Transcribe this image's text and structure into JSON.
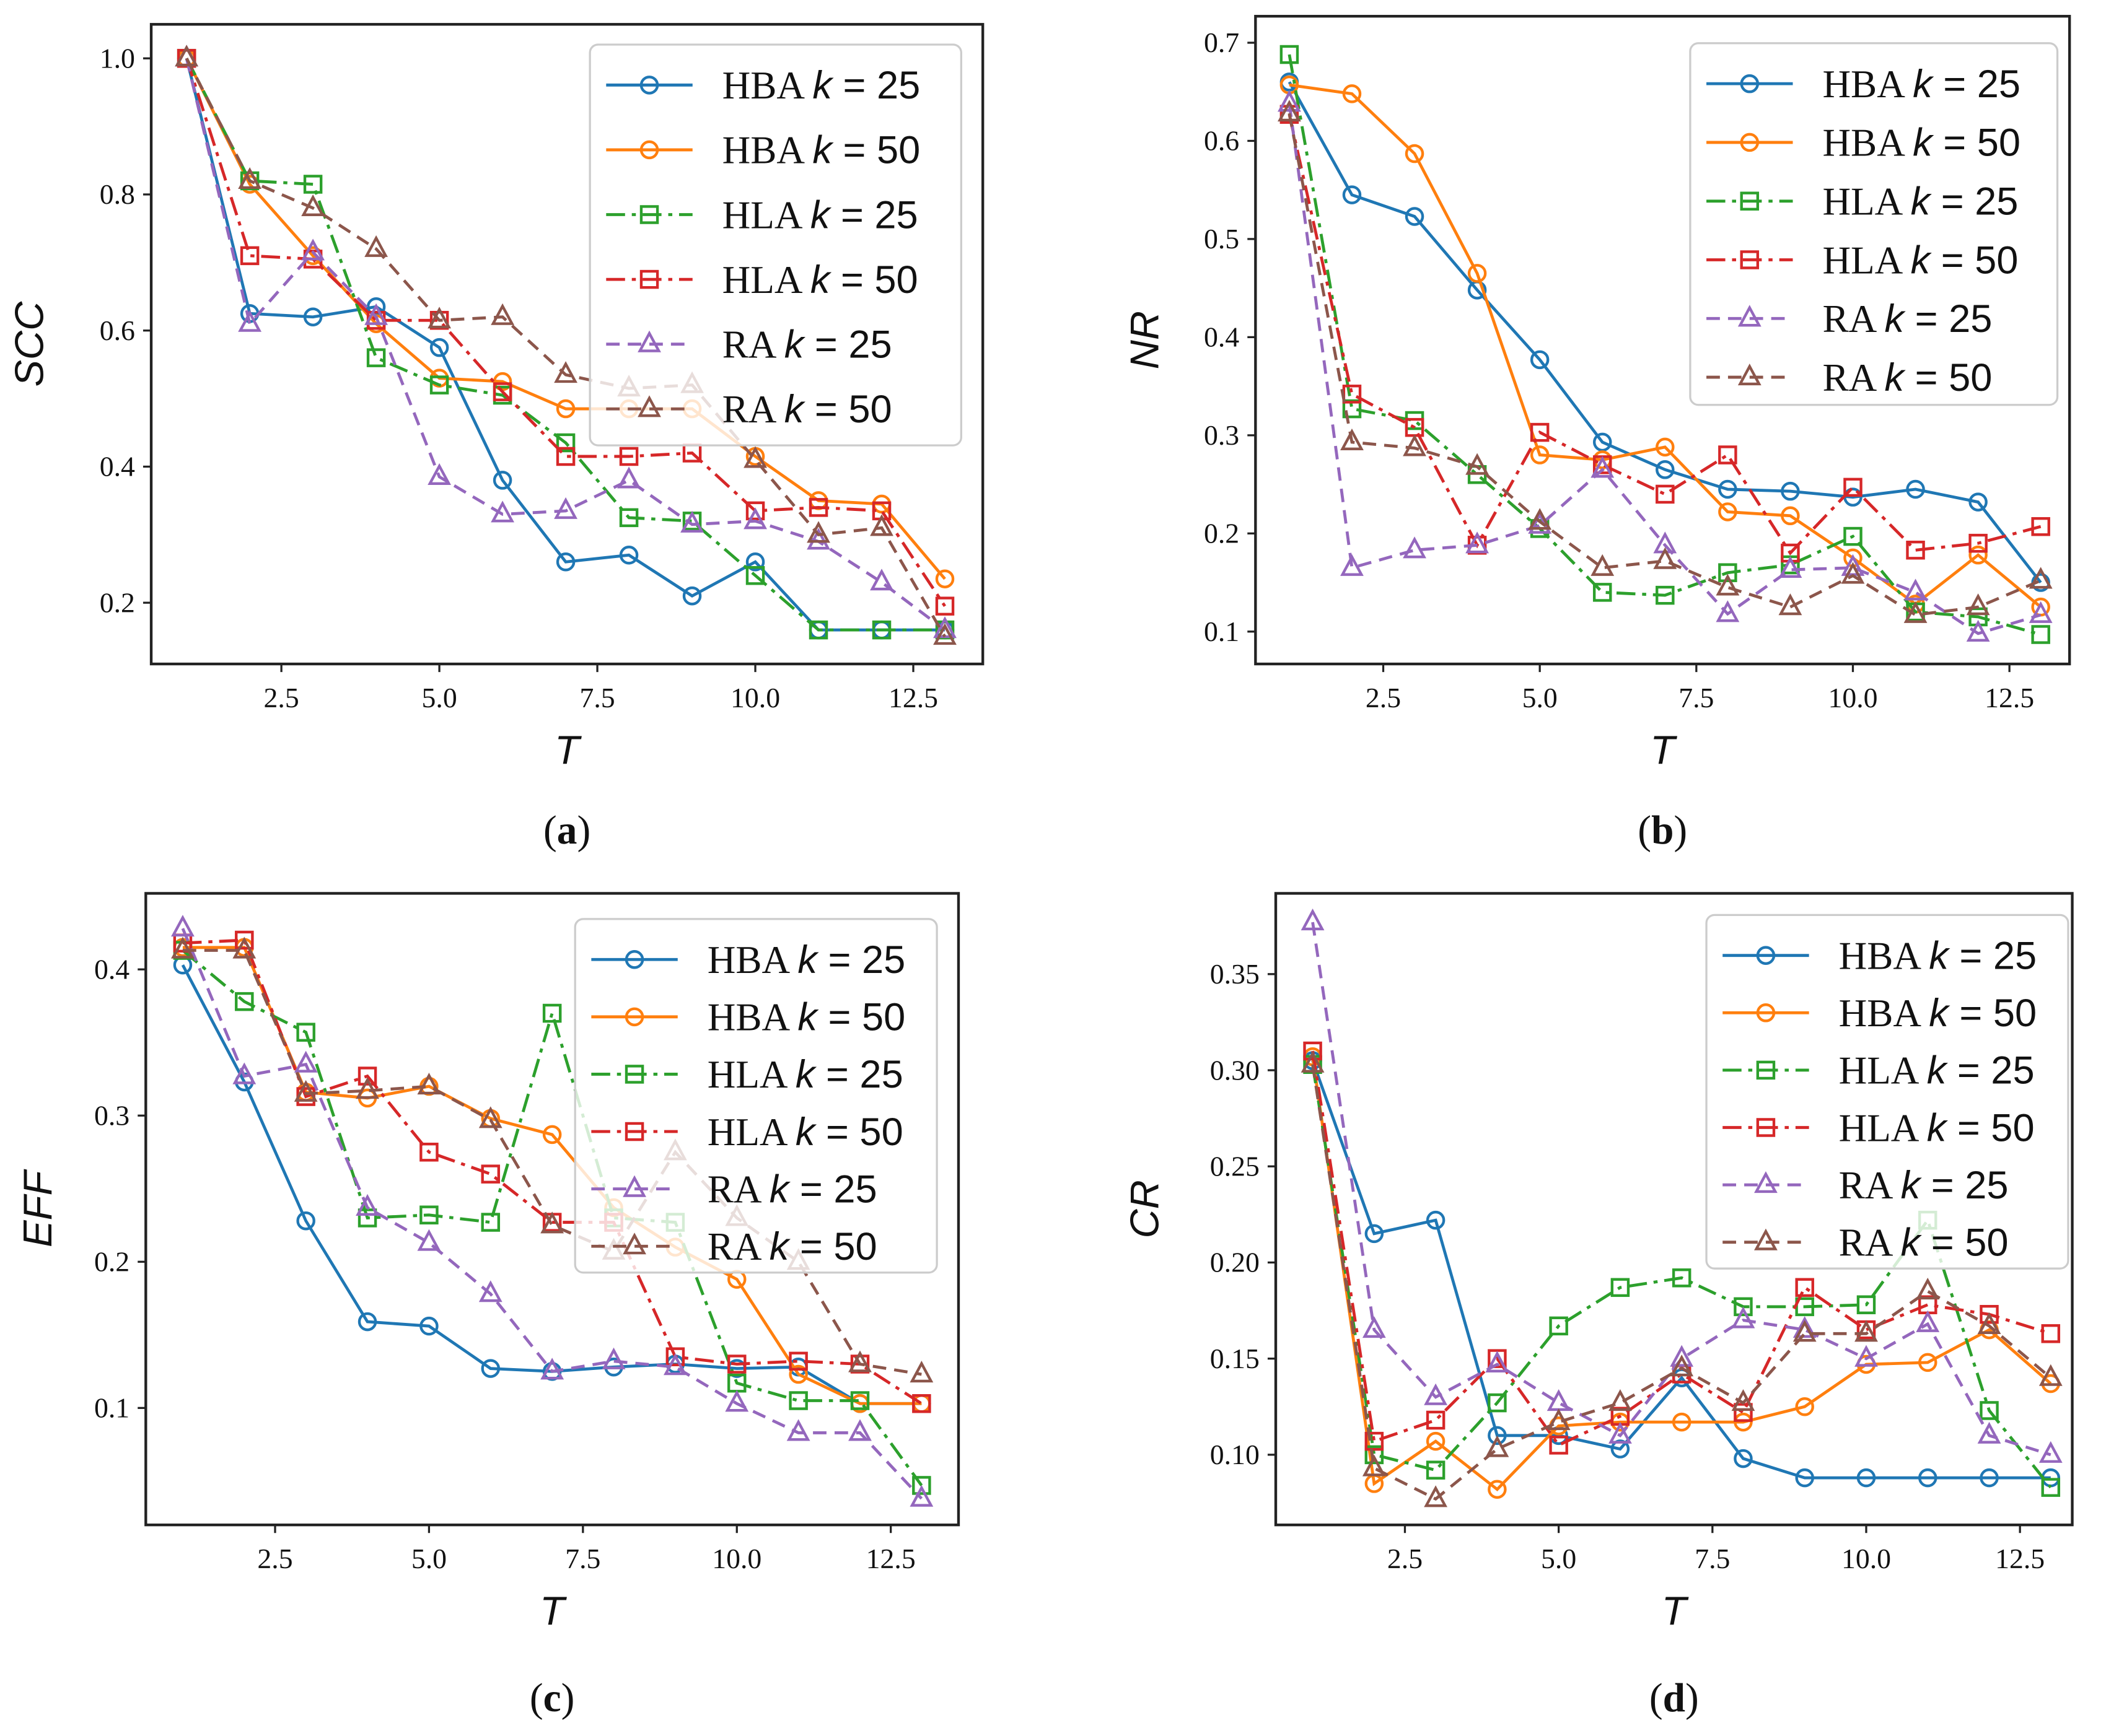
{
  "colors": {
    "HBA k = 25": "#1f77b4",
    "HBA k = 50": "#ff7f0e",
    "HLA k = 25": "#2ca02c",
    "HLA k = 50": "#d62728",
    "RA k = 25": "#9467bd",
    "RA k = 50": "#8c564b"
  },
  "chart_data": [
    {
      "type": "line",
      "caption": "a",
      "xlabel": "T",
      "ylabel": "SCC",
      "xlim": [
        0.44,
        13.6
      ],
      "ylim": [
        0.11,
        1.05
      ],
      "xticks": [
        2.5,
        5.0,
        7.5,
        10.0,
        12.5
      ],
      "yticks": [
        0.2,
        0.4,
        0.6,
        0.8,
        1.0
      ],
      "ytick_fmt": 1,
      "legend": "top-right",
      "x": [
        1,
        2,
        3,
        4,
        5,
        6,
        7,
        8,
        9,
        10,
        11,
        12,
        13
      ],
      "series": [
        {
          "name": "HBA",
          "k": "25",
          "values": [
            1.0,
            0.625,
            0.62,
            0.635,
            0.575,
            0.38,
            0.26,
            0.27,
            0.21,
            0.26,
            0.16,
            0.16,
            0.16
          ]
        },
        {
          "name": "HBA",
          "k": "50",
          "values": [
            1.0,
            0.815,
            0.71,
            0.61,
            0.53,
            0.525,
            0.485,
            0.485,
            0.485,
            0.415,
            0.35,
            0.345,
            0.235
          ]
        },
        {
          "name": "HLA",
          "k": "25",
          "values": [
            1.0,
            0.82,
            0.815,
            0.56,
            0.52,
            0.505,
            0.435,
            0.325,
            0.32,
            0.24,
            0.16,
            0.16,
            0.16
          ]
        },
        {
          "name": "HLA",
          "k": "50",
          "values": [
            1.0,
            0.71,
            0.705,
            0.615,
            0.615,
            0.51,
            0.415,
            0.415,
            0.42,
            0.335,
            0.34,
            0.335,
            0.195
          ]
        },
        {
          "name": "RA",
          "k": "25",
          "values": [
            1.0,
            0.61,
            0.715,
            0.62,
            0.385,
            0.33,
            0.335,
            0.38,
            0.315,
            0.32,
            0.29,
            0.23,
            0.16
          ]
        },
        {
          "name": "RA",
          "k": "50",
          "values": [
            1.0,
            0.82,
            0.78,
            0.72,
            0.615,
            0.62,
            0.535,
            0.515,
            0.52,
            0.41,
            0.3,
            0.31,
            0.15
          ]
        }
      ]
    },
    {
      "type": "line",
      "caption": "b",
      "xlabel": "T",
      "ylabel": "NR",
      "xlim": [
        0.46,
        13.46
      ],
      "ylim": [
        0.067,
        0.727
      ],
      "xticks": [
        2.5,
        5.0,
        7.5,
        10.0,
        12.5
      ],
      "yticks": [
        0.1,
        0.2,
        0.3,
        0.4,
        0.5,
        0.6,
        0.7
      ],
      "ytick_fmt": 1,
      "legend": "top-right",
      "x": [
        1,
        2,
        3,
        4,
        5,
        6,
        7,
        8,
        9,
        10,
        11,
        12,
        13
      ],
      "series": [
        {
          "name": "HBA",
          "k": "25",
          "values": [
            0.66,
            0.545,
            0.523,
            0.448,
            0.377,
            0.293,
            0.265,
            0.245,
            0.243,
            0.237,
            0.245,
            0.232,
            0.15
          ]
        },
        {
          "name": "HBA",
          "k": "50",
          "values": [
            0.657,
            0.648,
            0.587,
            0.465,
            0.28,
            0.275,
            0.288,
            0.222,
            0.218,
            0.175,
            0.128,
            0.178,
            0.125
          ]
        },
        {
          "name": "HLA",
          "k": "25",
          "values": [
            0.688,
            0.327,
            0.315,
            0.26,
            0.205,
            0.14,
            0.137,
            0.16,
            0.168,
            0.197,
            0.12,
            0.115,
            0.097
          ]
        },
        {
          "name": "HLA",
          "k": "50",
          "values": [
            0.627,
            0.342,
            0.308,
            0.188,
            0.303,
            0.27,
            0.24,
            0.28,
            0.18,
            0.247,
            0.183,
            0.19,
            0.207
          ]
        },
        {
          "name": "RA",
          "k": "25",
          "values": [
            0.638,
            0.165,
            0.183,
            0.188,
            0.208,
            0.265,
            0.188,
            0.118,
            0.163,
            0.165,
            0.14,
            0.098,
            0.117
          ]
        },
        {
          "name": "RA",
          "k": "50",
          "values": [
            0.628,
            0.293,
            0.287,
            0.268,
            0.212,
            0.165,
            0.172,
            0.145,
            0.125,
            0.157,
            0.117,
            0.125,
            0.152
          ]
        }
      ]
    },
    {
      "type": "line",
      "caption": "c",
      "xlabel": "T",
      "ylabel": "EFF",
      "xlim": [
        0.4,
        13.6
      ],
      "ylim": [
        0.02,
        0.452
      ],
      "xticks": [
        2.5,
        5.0,
        7.5,
        10.0,
        12.5
      ],
      "yticks": [
        0.1,
        0.2,
        0.3,
        0.4
      ],
      "ytick_fmt": 1,
      "legend": "top-right",
      "x": [
        1,
        2,
        3,
        4,
        5,
        6,
        7,
        8,
        9,
        10,
        11,
        12,
        13
      ],
      "series": [
        {
          "name": "HBA",
          "k": "25",
          "values": [
            0.403,
            0.323,
            0.228,
            0.159,
            0.156,
            0.127,
            0.125,
            0.128,
            0.13,
            0.127,
            0.128,
            0.103,
            0.103
          ]
        },
        {
          "name": "HBA",
          "k": "50",
          "values": [
            0.415,
            0.415,
            0.316,
            0.312,
            0.32,
            0.298,
            0.287,
            0.237,
            0.21,
            0.188,
            0.123,
            0.103,
            0.103
          ]
        },
        {
          "name": "HLA",
          "k": "25",
          "values": [
            0.413,
            0.378,
            0.357,
            0.23,
            0.232,
            0.227,
            0.37,
            0.23,
            0.227,
            0.117,
            0.105,
            0.105,
            0.047
          ]
        },
        {
          "name": "HLA",
          "k": "50",
          "values": [
            0.418,
            0.42,
            0.313,
            0.327,
            0.275,
            0.26,
            0.227,
            0.227,
            0.135,
            0.13,
            0.132,
            0.13,
            0.103
          ]
        },
        {
          "name": "RA",
          "k": "25",
          "values": [
            0.428,
            0.327,
            0.335,
            0.237,
            0.213,
            0.178,
            0.125,
            0.132,
            0.128,
            0.103,
            0.083,
            0.083,
            0.038
          ]
        },
        {
          "name": "RA",
          "k": "50",
          "values": [
            0.413,
            0.413,
            0.315,
            0.317,
            0.32,
            0.297,
            0.225,
            0.207,
            0.275,
            0.23,
            0.2,
            0.13,
            0.123
          ]
        }
      ]
    },
    {
      "type": "line",
      "caption": "d",
      "xlabel": "T",
      "ylabel": "CR",
      "xlim": [
        0.4,
        13.35
      ],
      "ylim": [
        0.0635,
        0.392
      ],
      "xticks": [
        2.5,
        5.0,
        7.5,
        10.0,
        12.5
      ],
      "yticks": [
        0.1,
        0.15,
        0.2,
        0.25,
        0.3,
        0.35
      ],
      "ytick_fmt": 2,
      "legend": "top-right",
      "x": [
        1,
        2,
        3,
        4,
        5,
        6,
        7,
        8,
        9,
        10,
        11,
        12,
        13
      ],
      "series": [
        {
          "name": "HBA",
          "k": "25",
          "values": [
            0.305,
            0.215,
            0.222,
            0.11,
            0.11,
            0.103,
            0.14,
            0.098,
            0.088,
            0.088,
            0.088,
            0.088,
            0.088
          ]
        },
        {
          "name": "HBA",
          "k": "50",
          "values": [
            0.307,
            0.085,
            0.107,
            0.082,
            0.115,
            0.117,
            0.117,
            0.117,
            0.125,
            0.147,
            0.148,
            0.165,
            0.137
          ]
        },
        {
          "name": "HLA",
          "k": "25",
          "values": [
            0.303,
            0.1,
            0.092,
            0.127,
            0.167,
            0.187,
            0.192,
            0.177,
            0.177,
            0.178,
            0.222,
            0.123,
            0.083
          ]
        },
        {
          "name": "HLA",
          "k": "50",
          "values": [
            0.31,
            0.107,
            0.118,
            0.15,
            0.105,
            0.12,
            0.142,
            0.122,
            0.187,
            0.165,
            0.178,
            0.173,
            0.163
          ]
        },
        {
          "name": "RA",
          "k": "25",
          "values": [
            0.377,
            0.165,
            0.13,
            0.147,
            0.127,
            0.11,
            0.15,
            0.17,
            0.165,
            0.15,
            0.168,
            0.11,
            0.1
          ]
        },
        {
          "name": "RA",
          "k": "50",
          "values": [
            0.303,
            0.093,
            0.077,
            0.103,
            0.117,
            0.127,
            0.145,
            0.127,
            0.163,
            0.163,
            0.185,
            0.167,
            0.14
          ]
        }
      ]
    }
  ]
}
